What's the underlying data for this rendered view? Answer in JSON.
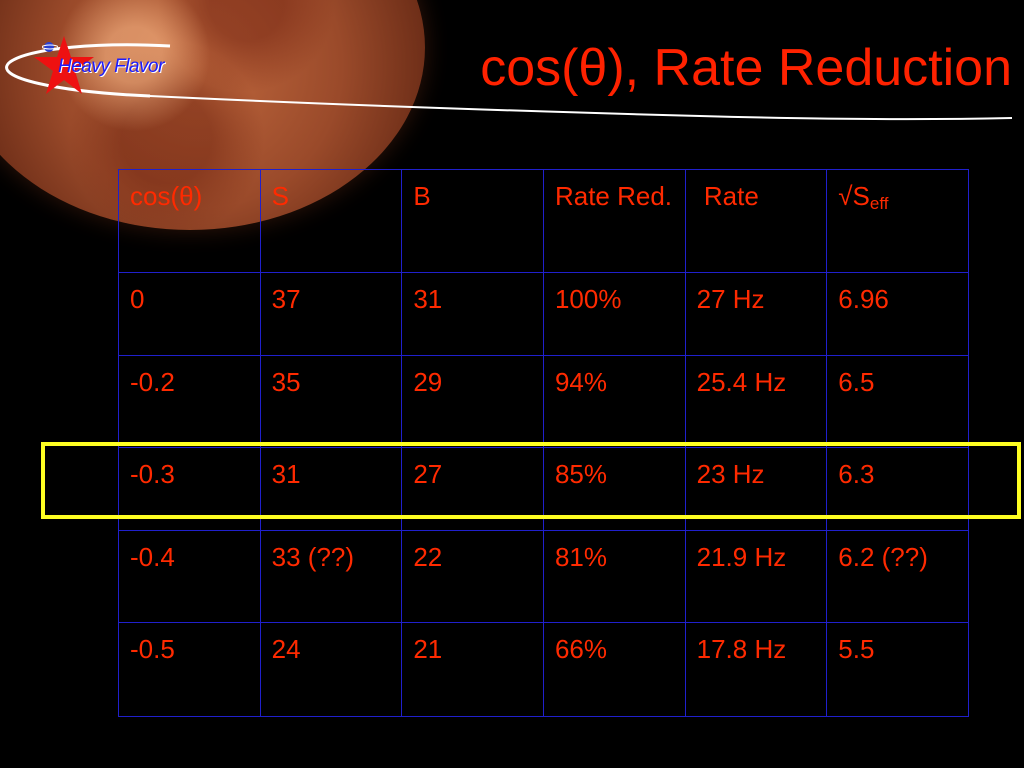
{
  "slide": {
    "title": "cos(θ), Rate Reduction",
    "logo_text": "Heavy Flavor"
  },
  "table": {
    "headers": [
      {
        "main": "cos(θ)",
        "sub": ""
      },
      {
        "main": "S",
        "sub": ""
      },
      {
        "main": "B",
        "sub": ""
      },
      {
        "main": "Rate Red.",
        "sub": ""
      },
      {
        "main": " Rate",
        "sub": ""
      },
      {
        "main": "√S",
        "sub": "eff"
      }
    ],
    "rows": [
      [
        "0",
        "37",
        "31",
        "100%",
        "27 Hz",
        "6.96"
      ],
      [
        "-0.2",
        "35",
        "29",
        "94%",
        "25.4 Hz",
        "6.5"
      ],
      [
        "-0.3",
        "31",
        "27",
        "85%",
        "23 Hz",
        "6.3"
      ],
      [
        "-0.4",
        "33 (??)",
        "22",
        "81%",
        "21.9 Hz",
        "6.2 (??)"
      ],
      [
        "-0.5",
        "24",
        "21",
        "66%",
        "17.8 Hz",
        "5.5"
      ]
    ],
    "highlighted_row": 2
  },
  "colors": {
    "background": "#000000",
    "text": "#ff2a00",
    "grid": "#2020cc",
    "highlight": "#ffff22",
    "logo_text": "#1c1cff",
    "star": "#ee1111"
  },
  "icons": {
    "logo_star": "star-icon",
    "logo_planet": "planet-icon",
    "background": "moon-image"
  }
}
